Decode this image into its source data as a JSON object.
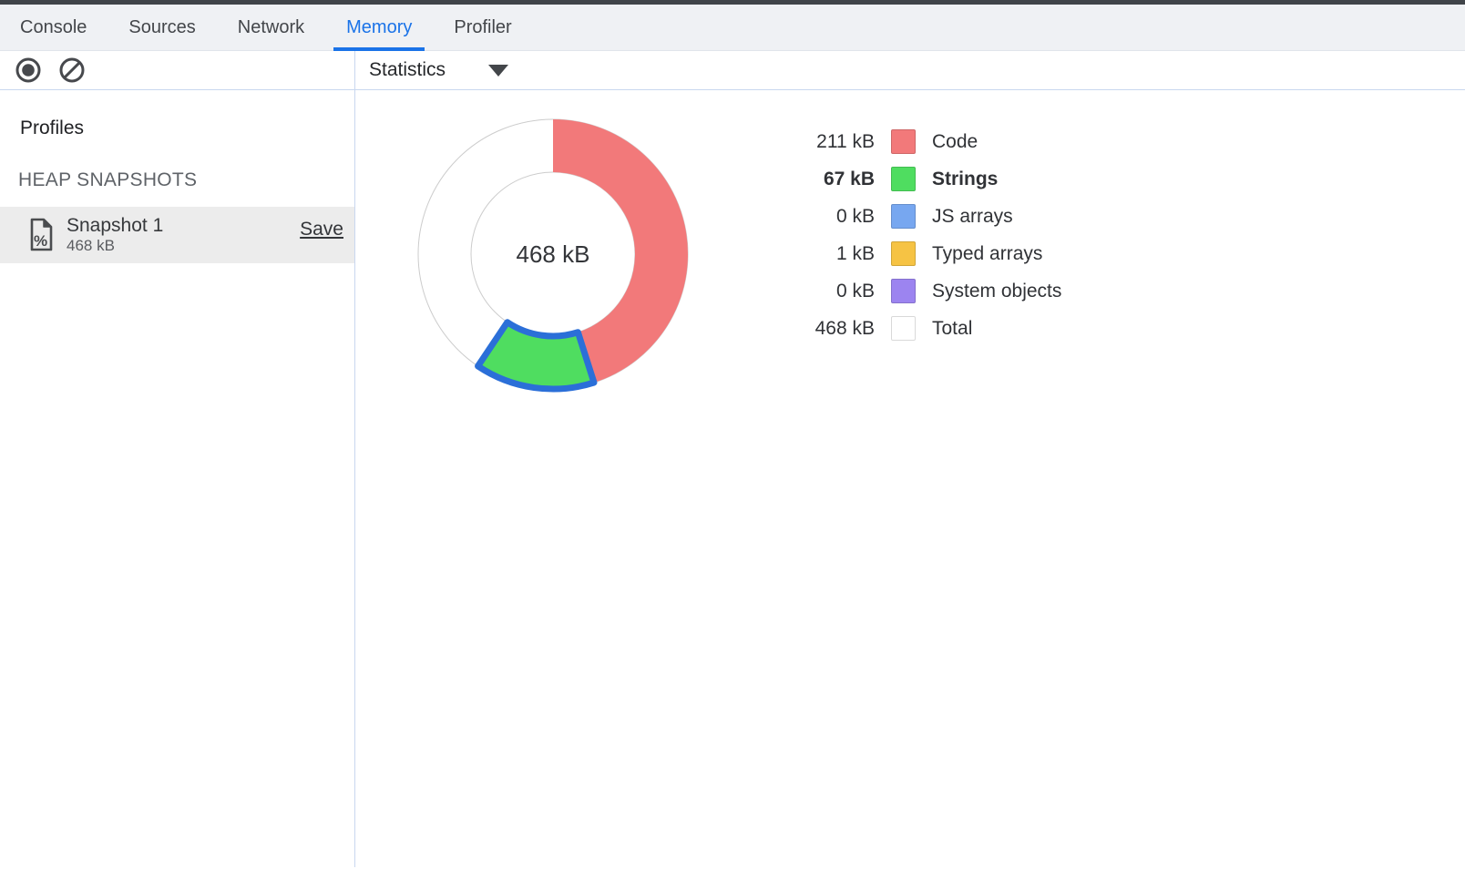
{
  "window": {
    "top_strip_color": "#404449"
  },
  "tabs": {
    "active_color": "#1a73e8",
    "items": [
      {
        "label": "Console",
        "active": false
      },
      {
        "label": "Sources",
        "active": false
      },
      {
        "label": "Network",
        "active": false
      },
      {
        "label": "Memory",
        "active": true
      },
      {
        "label": "Profiler",
        "active": false
      }
    ]
  },
  "toolbar": {
    "record_icon": "record-icon",
    "clear_icon": "clear-icon",
    "view_select": {
      "selected": "Statistics",
      "caret_icon": "chevron-down-icon"
    }
  },
  "sidebar": {
    "profiles_heading": "Profiles",
    "section_heading": "HEAP SNAPSHOTS",
    "snapshots": [
      {
        "name": "Snapshot 1",
        "size": "468 kB",
        "save_label": "Save",
        "selected": true,
        "icon": "heap-snapshot-document-icon"
      }
    ]
  },
  "chart_data": {
    "type": "pie",
    "subtype": "donut",
    "center_label": "468 kB",
    "unit": "kB",
    "direction": "clockwise",
    "start_angle_deg": 0,
    "legend_position": "right",
    "ring_outline_color": "#cccccc",
    "selection_stroke_color": "#2b6fd8",
    "total": {
      "label": "Total",
      "value_kB": 468,
      "display": "468 kB",
      "color": "#ffffff"
    },
    "series": [
      {
        "name": "Code",
        "value_kB": 211,
        "display": "211 kB",
        "color": "#f2797a",
        "selected": false
      },
      {
        "name": "Strings",
        "value_kB": 67,
        "display": "67 kB",
        "color": "#4fdd60",
        "selected": true
      },
      {
        "name": "JS arrays",
        "value_kB": 0,
        "display": "0 kB",
        "color": "#77a7f0",
        "selected": false
      },
      {
        "name": "Typed arrays",
        "value_kB": 1,
        "display": "1 kB",
        "color": "#f6c344",
        "selected": false
      },
      {
        "name": "System objects",
        "value_kB": 0,
        "display": "0 kB",
        "color": "#9c84f0",
        "selected": false
      }
    ]
  }
}
